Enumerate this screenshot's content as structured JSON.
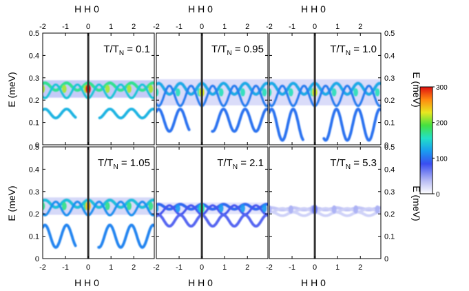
{
  "figure": {
    "top_xlabel": "H H 0",
    "bottom_xlabel": "H H 0",
    "ylabel": "E (meV)",
    "right_ylabel": "E (meV)"
  },
  "colors": {
    "colormap": [
      "#ffffff",
      "#b8bcf4",
      "#3a4ef0",
      "#1a9cf0",
      "#22e0c8",
      "#44e040",
      "#e8e820",
      "#ff8a10",
      "#e01010"
    ],
    "cut_line": "#333333"
  },
  "chart_data": [
    {
      "type": "heatmap",
      "panel": 1,
      "label_main": "T/T",
      "label_sub": "N",
      "label_value": " = 0.1",
      "x": {
        "range": [
          -2,
          2.9
        ],
        "ticks": [
          -2,
          -1,
          0,
          1,
          2
        ]
      },
      "y": {
        "range": [
          0,
          0.5
        ],
        "ticks": [
          0,
          0.1,
          0.2,
          0.3,
          0.4,
          0.5
        ]
      },
      "upper_band": {
        "center_E": 0.25,
        "amplitude": 0.03
      },
      "lower_band": {
        "center_E": 0.14,
        "amplitude": 0.02,
        "gap_H": [
          -0.55,
          0.5
        ]
      },
      "intensity_peak": 300,
      "cut_H": 0
    },
    {
      "type": "heatmap",
      "panel": 2,
      "label_main": "T/T",
      "label_sub": "N",
      "label_value": " = 0.95",
      "x": {
        "range": [
          -2,
          2.9
        ],
        "ticks": [
          -2,
          -1,
          0,
          1,
          2
        ]
      },
      "y": {
        "range": [
          0,
          0.5
        ],
        "ticks": [
          0,
          0.1,
          0.2,
          0.3,
          0.4,
          0.5
        ]
      },
      "upper_band": {
        "center_E": 0.235,
        "amplitude": 0.045
      },
      "lower_band": {
        "center_E": 0.11,
        "amplitude": 0.05,
        "gap_H": [
          -0.55,
          0.45
        ]
      },
      "intensity_peak": 220,
      "cut_H": 0
    },
    {
      "type": "heatmap",
      "panel": 3,
      "label_main": "T/T",
      "label_sub": "N",
      "label_value": " = 1.0",
      "x": {
        "range": [
          -2,
          2.9
        ],
        "ticks": [
          -2,
          -1,
          0,
          1,
          2
        ]
      },
      "y": {
        "range": [
          0,
          0.5
        ],
        "ticks": [
          0,
          0.1,
          0.2,
          0.3,
          0.4,
          0.5
        ]
      },
      "upper_band": {
        "center_E": 0.235,
        "amplitude": 0.045
      },
      "lower_band": {
        "center_E": 0.09,
        "amplitude": 0.07,
        "gap_H": [
          -0.5,
          0.4
        ]
      },
      "intensity_peak": 220,
      "cut_H": 0
    },
    {
      "type": "heatmap",
      "panel": 4,
      "label_main": "T/T",
      "label_sub": "N",
      "label_value": " = 1.05",
      "x": {
        "range": [
          -2,
          2.9
        ],
        "ticks": [
          -2,
          -1,
          0,
          1,
          2
        ]
      },
      "y": {
        "range": [
          0,
          0.5
        ],
        "ticks": [
          0,
          0.1,
          0.2,
          0.3,
          0.4,
          0.5
        ]
      },
      "upper_band": {
        "center_E": 0.235,
        "amplitude": 0.03
      },
      "lower_band": {
        "center_E": 0.1,
        "amplitude": 0.05,
        "gap_H": [
          -0.55,
          0.45
        ]
      },
      "intensity_peak": 240,
      "cut_H": 0
    },
    {
      "type": "heatmap",
      "panel": 5,
      "label_main": "T/T",
      "label_sub": "N",
      "label_value": " = 2.1",
      "x": {
        "range": [
          -2,
          2.9
        ],
        "ticks": [
          -2,
          -1,
          0,
          1,
          2
        ]
      },
      "y": {
        "range": [
          0,
          0.5
        ],
        "ticks": [
          0,
          0.1,
          0.2,
          0.3,
          0.4,
          0.5
        ]
      },
      "upper_band": {
        "center_E": 0.225,
        "amplitude": 0.02
      },
      "lower_band": {
        "center_E": 0.17,
        "amplitude": 0.025,
        "gap_H": null
      },
      "intensity_peak": 160,
      "cut_H": 0
    },
    {
      "type": "heatmap",
      "panel": 6,
      "label_main": "T/T",
      "label_sub": "N",
      "label_value": " = 5.3",
      "x": {
        "range": [
          -2,
          2.9
        ],
        "ticks": [
          -2,
          -1,
          0,
          1,
          2
        ]
      },
      "y": {
        "range": [
          0,
          0.5
        ],
        "ticks": [
          0,
          0.1,
          0.2,
          0.3,
          0.4,
          0.5
        ]
      },
      "upper_band": {
        "center_E": 0.22,
        "amplitude": 0.008
      },
      "lower_band": {
        "center_E": 0.2,
        "amplitude": 0.008,
        "gap_H": null
      },
      "intensity_peak": 60,
      "cut_H": 0
    },
    {
      "type": "colorbar",
      "range": [
        0,
        300
      ],
      "ticks": [
        0,
        100,
        200,
        300
      ]
    }
  ]
}
